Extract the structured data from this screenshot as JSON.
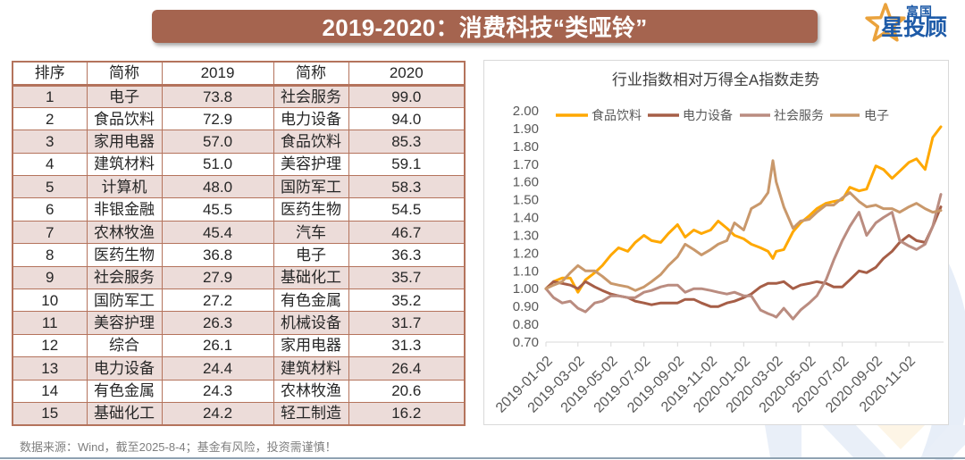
{
  "banner": {
    "title": "2019-2020：消费科技“类哑铃”"
  },
  "logo": {
    "top_text": "富国",
    "star_char": "星",
    "main_text": "投顾"
  },
  "table": {
    "headers": {
      "rank": "排序",
      "name_2019": "简称",
      "year_2019": "2019",
      "name_2020": "简称",
      "year_2020": "2020"
    },
    "rows": [
      {
        "rank": "1",
        "name_2019": "电子",
        "value_2019": "73.8",
        "name_2020": "社会服务",
        "value_2020": "99.0"
      },
      {
        "rank": "2",
        "name_2019": "食品饮料",
        "value_2019": "72.9",
        "name_2020": "电力设备",
        "value_2020": "94.0"
      },
      {
        "rank": "3",
        "name_2019": "家用电器",
        "value_2019": "57.0",
        "name_2020": "食品饮料",
        "value_2020": "85.3"
      },
      {
        "rank": "4",
        "name_2019": "建筑材料",
        "value_2019": "51.0",
        "name_2020": "美容护理",
        "value_2020": "59.1"
      },
      {
        "rank": "5",
        "name_2019": "计算机",
        "value_2019": "48.0",
        "name_2020": "国防军工",
        "value_2020": "58.3"
      },
      {
        "rank": "6",
        "name_2019": "非银金融",
        "value_2019": "45.5",
        "name_2020": "医药生物",
        "value_2020": "54.5"
      },
      {
        "rank": "7",
        "name_2019": "农林牧渔",
        "value_2019": "45.4",
        "name_2020": "汽车",
        "value_2020": "46.7"
      },
      {
        "rank": "8",
        "name_2019": "医药生物",
        "value_2019": "36.8",
        "name_2020": "电子",
        "value_2020": "36.3"
      },
      {
        "rank": "9",
        "name_2019": "社会服务",
        "value_2019": "27.9",
        "name_2020": "基础化工",
        "value_2020": "35.7"
      },
      {
        "rank": "10",
        "name_2019": "国防军工",
        "value_2019": "27.2",
        "name_2020": "有色金属",
        "value_2020": "35.2"
      },
      {
        "rank": "11",
        "name_2019": "美容护理",
        "value_2019": "26.3",
        "name_2020": "机械设备",
        "value_2020": "31.7"
      },
      {
        "rank": "12",
        "name_2019": "综合",
        "value_2019": "26.1",
        "name_2020": "家用电器",
        "value_2020": "31.3"
      },
      {
        "rank": "13",
        "name_2019": "电力设备",
        "value_2019": "24.4",
        "name_2020": "建筑材料",
        "value_2020": "26.4"
      },
      {
        "rank": "14",
        "name_2019": "有色金属",
        "value_2019": "24.3",
        "name_2020": "农林牧渔",
        "value_2020": "20.6"
      },
      {
        "rank": "15",
        "name_2019": "基础化工",
        "value_2019": "24.2",
        "name_2020": "轻工制造",
        "value_2020": "16.2"
      }
    ]
  },
  "footer": {
    "source": "数据来源：Wind，截至2025-8-4；基金有风险，投资需谨慎！"
  },
  "chart_data": {
    "type": "line",
    "title": "行业指数相对万得全A指数走势",
    "xlabel": "",
    "ylabel": "",
    "ylim": [
      0.7,
      2.0
    ],
    "yticks": [
      "0.70",
      "0.80",
      "0.90",
      "1.00",
      "1.10",
      "1.20",
      "1.30",
      "1.40",
      "1.50",
      "1.60",
      "1.70",
      "1.80",
      "1.90",
      "2.00"
    ],
    "xlim": [
      "2019-01-02",
      "2020-12-31"
    ],
    "xticks": [
      "2019-01-02",
      "2019-03-02",
      "2019-05-02",
      "2019-07-02",
      "2019-09-02",
      "2019-11-02",
      "2020-01-02",
      "2020-03-02",
      "2020-05-02",
      "2020-07-02",
      "2020-09-02",
      "2020-11-02"
    ],
    "grid": false,
    "legend_position": "top",
    "x": [
      "2019-01-02",
      "2019-01-16",
      "2019-02-01",
      "2019-02-16",
      "2019-03-02",
      "2019-03-16",
      "2019-04-02",
      "2019-04-16",
      "2019-05-02",
      "2019-05-16",
      "2019-06-02",
      "2019-06-16",
      "2019-07-02",
      "2019-07-16",
      "2019-08-02",
      "2019-08-16",
      "2019-09-02",
      "2019-09-16",
      "2019-10-02",
      "2019-10-16",
      "2019-11-02",
      "2019-11-16",
      "2019-12-02",
      "2019-12-16",
      "2020-01-02",
      "2020-01-16",
      "2020-02-02",
      "2020-02-16",
      "2020-02-25",
      "2020-03-02",
      "2020-03-16",
      "2020-04-02",
      "2020-04-16",
      "2020-05-02",
      "2020-05-16",
      "2020-06-02",
      "2020-06-16",
      "2020-07-02",
      "2020-07-16",
      "2020-08-02",
      "2020-08-16",
      "2020-09-02",
      "2020-09-16",
      "2020-10-02",
      "2020-10-16",
      "2020-11-02",
      "2020-11-16",
      "2020-12-02",
      "2020-12-16",
      "2020-12-31"
    ],
    "series": [
      {
        "name": "食品饮料",
        "color": "#FFA800",
        "values": [
          1.0,
          1.04,
          1.06,
          1.06,
          0.98,
          1.05,
          1.09,
          1.13,
          1.19,
          1.23,
          1.21,
          1.26,
          1.3,
          1.27,
          1.26,
          1.31,
          1.36,
          1.29,
          1.33,
          1.31,
          1.33,
          1.38,
          1.34,
          1.3,
          1.28,
          1.25,
          1.23,
          1.21,
          1.17,
          1.21,
          1.22,
          1.32,
          1.37,
          1.41,
          1.45,
          1.48,
          1.49,
          1.5,
          1.57,
          1.55,
          1.56,
          1.69,
          1.67,
          1.62,
          1.66,
          1.71,
          1.73,
          1.67,
          1.85,
          1.91
        ]
      },
      {
        "name": "电力设备",
        "color": "#A65E47",
        "values": [
          1.0,
          1.04,
          1.03,
          1.02,
          1.0,
          1.04,
          1.01,
          0.99,
          0.97,
          0.96,
          0.95,
          0.93,
          0.92,
          0.91,
          0.92,
          0.92,
          0.92,
          0.94,
          0.94,
          0.92,
          0.9,
          0.9,
          0.92,
          0.93,
          0.95,
          0.97,
          1.01,
          1.03,
          1.03,
          1.03,
          1.04,
          1.0,
          1.02,
          1.03,
          1.04,
          1.03,
          1.01,
          1.01,
          1.05,
          1.1,
          1.09,
          1.12,
          1.17,
          1.21,
          1.26,
          1.3,
          1.27,
          1.26,
          1.35,
          1.46
        ]
      },
      {
        "name": "社会服务",
        "color": "#BA8C80",
        "values": [
          1.0,
          0.95,
          0.92,
          0.93,
          0.89,
          0.87,
          0.92,
          0.93,
          0.96,
          0.96,
          0.95,
          0.95,
          0.98,
          0.99,
          1.01,
          1.02,
          1.02,
          0.98,
          1.0,
          1.0,
          0.99,
          0.98,
          0.97,
          0.98,
          0.96,
          0.96,
          0.88,
          0.86,
          0.85,
          0.84,
          0.89,
          0.83,
          0.88,
          0.92,
          0.96,
          1.05,
          1.16,
          1.27,
          1.35,
          1.43,
          1.3,
          1.37,
          1.4,
          1.43,
          1.27,
          1.24,
          1.22,
          1.25,
          1.35,
          1.53
        ]
      },
      {
        "name": "电子",
        "color": "#C9986B",
        "values": [
          1.0,
          1.02,
          1.04,
          1.09,
          1.13,
          1.1,
          1.1,
          1.07,
          1.03,
          1.02,
          1.01,
          0.99,
          1.01,
          1.04,
          1.08,
          1.13,
          1.18,
          1.25,
          1.22,
          1.19,
          1.22,
          1.25,
          1.27,
          1.37,
          1.33,
          1.45,
          1.48,
          1.54,
          1.72,
          1.6,
          1.46,
          1.34,
          1.38,
          1.39,
          1.43,
          1.47,
          1.47,
          1.51,
          1.54,
          1.49,
          1.46,
          1.47,
          1.45,
          1.45,
          1.43,
          1.46,
          1.48,
          1.45,
          1.43,
          1.44
        ]
      }
    ]
  }
}
